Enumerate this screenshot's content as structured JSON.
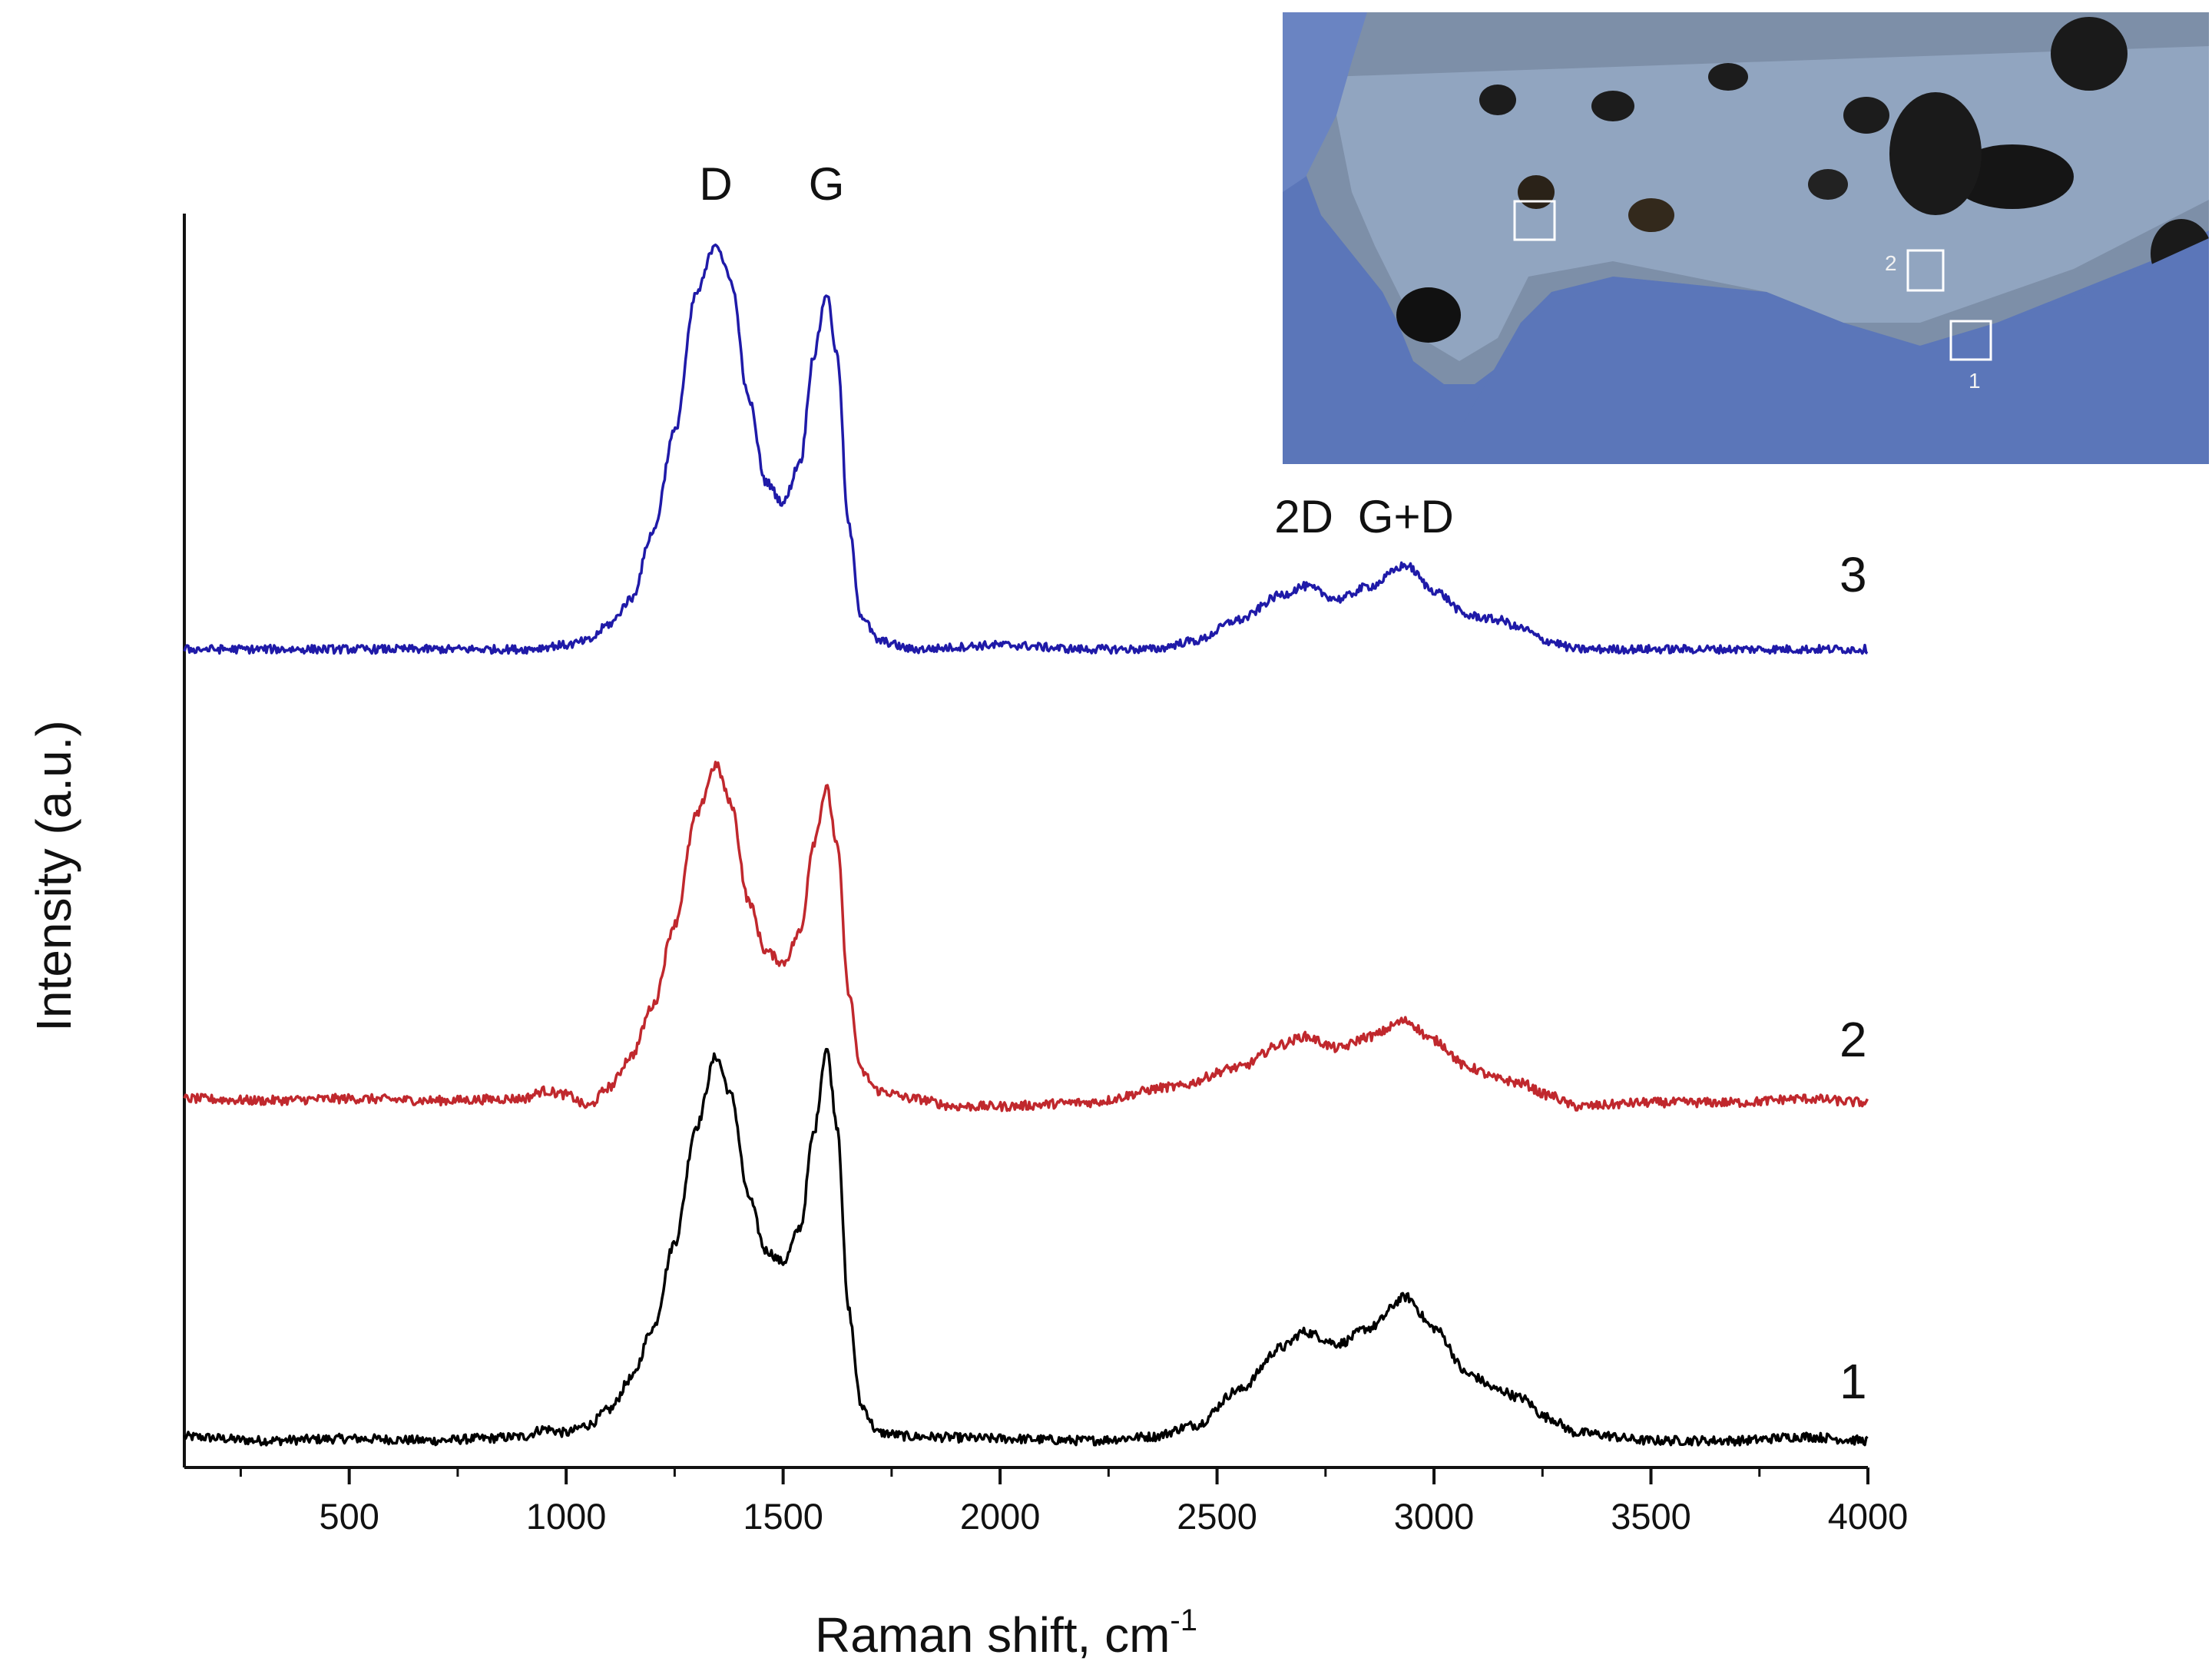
{
  "chart_data": {
    "type": "line",
    "xlabel": "Raman shift, cm",
    "xlabel_superscript": "-1",
    "ylabel": "Intensity (a.u.)",
    "xlim": [
      120,
      4000
    ],
    "xticks": [
      500,
      1000,
      1500,
      2000,
      2500,
      3000,
      3500,
      4000
    ],
    "tick_labels": [
      "500",
      "1000",
      "1500",
      "2000",
      "2500",
      "3000",
      "3500",
      "4000"
    ],
    "y_ticks_shown": false,
    "grid": false,
    "legend": "none",
    "peak_annotations": [
      {
        "text": "D",
        "x": 1345
      },
      {
        "text": "G",
        "x": 1600
      },
      {
        "text": "2D",
        "x": 2700
      },
      {
        "text": "G+D",
        "x": 2935
      }
    ],
    "series": [
      {
        "name": "1",
        "color": "#000000",
        "offset": 0,
        "noise": 0.012,
        "points": [
          [
            120,
            0.02
          ],
          [
            300,
            0.01
          ],
          [
            500,
            0.015
          ],
          [
            700,
            0.01
          ],
          [
            800,
            0.015
          ],
          [
            900,
            0.02
          ],
          [
            950,
            0.04
          ],
          [
            1000,
            0.03
          ],
          [
            1050,
            0.05
          ],
          [
            1100,
            0.09
          ],
          [
            1150,
            0.17
          ],
          [
            1200,
            0.3
          ],
          [
            1250,
            0.52
          ],
          [
            1300,
            0.82
          ],
          [
            1345,
            1.0
          ],
          [
            1380,
            0.9
          ],
          [
            1420,
            0.64
          ],
          [
            1460,
            0.5
          ],
          [
            1500,
            0.47
          ],
          [
            1540,
            0.56
          ],
          [
            1570,
            0.8
          ],
          [
            1600,
            1.02
          ],
          [
            1625,
            0.82
          ],
          [
            1650,
            0.35
          ],
          [
            1680,
            0.1
          ],
          [
            1720,
            0.03
          ],
          [
            1800,
            0.02
          ],
          [
            2000,
            0.015
          ],
          [
            2200,
            0.01
          ],
          [
            2350,
            0.02
          ],
          [
            2450,
            0.05
          ],
          [
            2550,
            0.14
          ],
          [
            2650,
            0.25
          ],
          [
            2700,
            0.29
          ],
          [
            2780,
            0.26
          ],
          [
            2850,
            0.3
          ],
          [
            2935,
            0.38
          ],
          [
            3000,
            0.3
          ],
          [
            3080,
            0.18
          ],
          [
            3150,
            0.14
          ],
          [
            3200,
            0.12
          ],
          [
            3260,
            0.07
          ],
          [
            3330,
            0.03
          ],
          [
            3500,
            0.01
          ],
          [
            3700,
            0.01
          ],
          [
            3850,
            0.02
          ],
          [
            4000,
            0.01
          ]
        ]
      },
      {
        "name": "2",
        "color": "#c0282d",
        "offset": 1.0,
        "noise": 0.012,
        "points": [
          [
            120,
            0.02
          ],
          [
            300,
            0.015
          ],
          [
            500,
            0.02
          ],
          [
            700,
            0.015
          ],
          [
            900,
            0.02
          ],
          [
            950,
            0.04
          ],
          [
            1000,
            0.03
          ],
          [
            1050,
            0.0
          ],
          [
            1100,
            0.05
          ],
          [
            1150,
            0.13
          ],
          [
            1200,
            0.26
          ],
          [
            1250,
            0.47
          ],
          [
            1300,
            0.75
          ],
          [
            1345,
            0.88
          ],
          [
            1380,
            0.78
          ],
          [
            1420,
            0.53
          ],
          [
            1460,
            0.4
          ],
          [
            1500,
            0.37
          ],
          [
            1540,
            0.45
          ],
          [
            1570,
            0.68
          ],
          [
            1600,
            0.82
          ],
          [
            1625,
            0.67
          ],
          [
            1650,
            0.3
          ],
          [
            1680,
            0.09
          ],
          [
            1720,
            0.04
          ],
          [
            1800,
            0.02
          ],
          [
            1900,
            0.0
          ],
          [
            2000,
            0.0
          ],
          [
            2200,
            0.01
          ],
          [
            2400,
            0.05
          ],
          [
            2550,
            0.1
          ],
          [
            2650,
            0.16
          ],
          [
            2700,
            0.18
          ],
          [
            2780,
            0.15
          ],
          [
            2850,
            0.18
          ],
          [
            2935,
            0.22
          ],
          [
            3000,
            0.17
          ],
          [
            3080,
            0.1
          ],
          [
            3150,
            0.07
          ],
          [
            3200,
            0.06
          ],
          [
            3260,
            0.03
          ],
          [
            3330,
            0.0
          ],
          [
            3500,
            0.01
          ],
          [
            3700,
            0.01
          ],
          [
            3850,
            0.02
          ],
          [
            4000,
            0.01
          ]
        ]
      },
      {
        "name": "3",
        "color": "#1f1aa8",
        "offset": 2.0,
        "noise": 0.01,
        "points": [
          [
            120,
            0.0
          ],
          [
            300,
            0.0
          ],
          [
            500,
            0.0
          ],
          [
            700,
            0.0
          ],
          [
            900,
            0.0
          ],
          [
            1000,
            0.01
          ],
          [
            1050,
            0.02
          ],
          [
            1100,
            0.06
          ],
          [
            1150,
            0.12
          ],
          [
            1200,
            0.28
          ],
          [
            1250,
            0.52
          ],
          [
            1300,
            0.85
          ],
          [
            1345,
            0.97
          ],
          [
            1380,
            0.88
          ],
          [
            1420,
            0.6
          ],
          [
            1460,
            0.4
          ],
          [
            1500,
            0.35
          ],
          [
            1540,
            0.45
          ],
          [
            1570,
            0.7
          ],
          [
            1600,
            0.85
          ],
          [
            1625,
            0.7
          ],
          [
            1650,
            0.3
          ],
          [
            1680,
            0.08
          ],
          [
            1720,
            0.02
          ],
          [
            1800,
            0.0
          ],
          [
            2000,
            0.01
          ],
          [
            2200,
            0.0
          ],
          [
            2350,
            0.0
          ],
          [
            2450,
            0.02
          ],
          [
            2550,
            0.07
          ],
          [
            2650,
            0.13
          ],
          [
            2700,
            0.15
          ],
          [
            2780,
            0.12
          ],
          [
            2850,
            0.15
          ],
          [
            2935,
            0.2
          ],
          [
            3000,
            0.14
          ],
          [
            3080,
            0.08
          ],
          [
            3150,
            0.07
          ],
          [
            3200,
            0.05
          ],
          [
            3260,
            0.02
          ],
          [
            3330,
            0.0
          ],
          [
            3500,
            0.0
          ],
          [
            3700,
            0.0
          ],
          [
            3850,
            0.0
          ],
          [
            4000,
            0.0
          ]
        ]
      }
    ]
  },
  "inset": {
    "description_markers": [
      "2",
      "1"
    ],
    "background_color": "#5b76b9"
  }
}
